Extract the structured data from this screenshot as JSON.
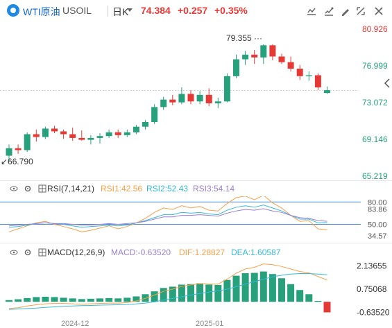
{
  "header": {
    "symbol": "WTI原油",
    "code": "USOIL",
    "period": "日K",
    "price": "74.384",
    "change": "+0.257",
    "change_pct": "+0.35%",
    "buttons": [
      "chart-style-icon",
      "indicator-icon",
      "draw-icon",
      "settings-icon",
      "fullscreen-icon",
      "close-icon"
    ]
  },
  "price_axis": [
    "80.926",
    "76.999",
    "73.072",
    "69.146",
    "65.219"
  ],
  "high_label": "79.355",
  "low_label": "66.790",
  "rsi": {
    "title": "RSI(7,14,21)",
    "rsi1": "RSI1:42.56",
    "rsi2": "RSI2:52.43",
    "rsi3": "RSI3:54.14",
    "axis": [
      "80.00",
      "83.86",
      "50.00",
      "34.57"
    ]
  },
  "macd": {
    "title": "MACD(12,26,9)",
    "macd": "MACD:-0.63520",
    "dif": "DIF:1.28827",
    "dea": "DEA:1.60587",
    "axis": [
      "2.13655",
      "0.75068",
      "-0.63520"
    ]
  },
  "dates": [
    "2024-12",
    "2025-01"
  ],
  "colors": {
    "up": "#e53935",
    "down": "#26a17b",
    "rsi1": "#f5a04a",
    "rsi2": "#36b8d8",
    "rsi3": "#9a7fd1",
    "dif": "#f5a04a",
    "dea": "#36b8d8",
    "accent": "#1565c0"
  },
  "chart_data": {
    "type": "candlestick",
    "candles": [
      {
        "o": 67.4,
        "h": 68.6,
        "l": 66.8,
        "c": 68.2
      },
      {
        "o": 68.2,
        "h": 68.6,
        "l": 67.6,
        "c": 68.0
      },
      {
        "o": 68.0,
        "h": 69.9,
        "l": 67.8,
        "c": 69.7
      },
      {
        "o": 69.7,
        "h": 70.2,
        "l": 68.9,
        "c": 69.4
      },
      {
        "o": 69.4,
        "h": 70.5,
        "l": 69.2,
        "c": 70.3
      },
      {
        "o": 70.3,
        "h": 70.6,
        "l": 69.8,
        "c": 70.0
      },
      {
        "o": 70.0,
        "h": 70.2,
        "l": 69.2,
        "c": 69.7
      },
      {
        "o": 69.7,
        "h": 70.4,
        "l": 69.0,
        "c": 69.3
      },
      {
        "o": 69.3,
        "h": 70.1,
        "l": 69.0,
        "c": 69.1
      },
      {
        "o": 69.1,
        "h": 69.6,
        "l": 68.6,
        "c": 69.3
      },
      {
        "o": 69.3,
        "h": 69.8,
        "l": 68.7,
        "c": 69.5
      },
      {
        "o": 69.5,
        "h": 70.2,
        "l": 69.3,
        "c": 69.9
      },
      {
        "o": 69.9,
        "h": 70.2,
        "l": 69.3,
        "c": 69.6
      },
      {
        "o": 69.6,
        "h": 70.2,
        "l": 69.4,
        "c": 69.9
      },
      {
        "o": 69.9,
        "h": 70.7,
        "l": 69.7,
        "c": 70.5
      },
      {
        "o": 70.5,
        "h": 71.2,
        "l": 70.2,
        "c": 71.0
      },
      {
        "o": 71.0,
        "h": 72.9,
        "l": 70.8,
        "c": 72.6
      },
      {
        "o": 72.6,
        "h": 73.7,
        "l": 72.3,
        "c": 73.4
      },
      {
        "o": 73.4,
        "h": 73.9,
        "l": 72.8,
        "c": 73.1
      },
      {
        "o": 73.1,
        "h": 74.7,
        "l": 72.9,
        "c": 74.0
      },
      {
        "o": 74.0,
        "h": 74.4,
        "l": 72.9,
        "c": 73.2
      },
      {
        "o": 73.2,
        "h": 74.3,
        "l": 72.9,
        "c": 73.9
      },
      {
        "o": 73.9,
        "h": 74.6,
        "l": 72.7,
        "c": 73.0
      },
      {
        "o": 73.0,
        "h": 73.6,
        "l": 72.5,
        "c": 73.2
      },
      {
        "o": 73.2,
        "h": 76.2,
        "l": 73.1,
        "c": 75.9
      },
      {
        "o": 75.9,
        "h": 78.2,
        "l": 75.7,
        "c": 77.7
      },
      {
        "o": 77.7,
        "h": 78.6,
        "l": 77.1,
        "c": 78.2
      },
      {
        "o": 78.2,
        "h": 78.7,
        "l": 77.2,
        "c": 77.9
      },
      {
        "o": 77.9,
        "h": 79.3,
        "l": 77.2,
        "c": 79.2
      },
      {
        "o": 79.2,
        "h": 79.3,
        "l": 77.6,
        "c": 78.0
      },
      {
        "o": 78.0,
        "h": 78.3,
        "l": 77.2,
        "c": 77.4
      },
      {
        "o": 77.4,
        "h": 78.0,
        "l": 76.4,
        "c": 76.7
      },
      {
        "o": 76.7,
        "h": 77.1,
        "l": 75.5,
        "c": 75.9
      },
      {
        "o": 75.9,
        "h": 76.4,
        "l": 75.4,
        "c": 76.0
      },
      {
        "o": 76.0,
        "h": 76.2,
        "l": 74.4,
        "c": 74.7
      },
      {
        "o": 74.1,
        "h": 74.8,
        "l": 74.0,
        "c": 74.4
      }
    ],
    "rsi_series": {
      "rsi1": [
        40,
        44,
        48,
        52,
        54,
        50,
        47,
        44,
        40,
        42,
        45,
        48,
        44,
        47,
        52,
        58,
        66,
        72,
        70,
        75,
        72,
        74,
        69,
        68,
        78,
        86,
        88,
        83,
        89,
        79,
        72,
        62,
        54,
        55,
        44,
        42.56
      ],
      "rsi2": [
        46,
        47,
        49,
        51,
        52,
        51,
        50,
        48,
        46,
        47,
        48,
        49,
        48,
        49,
        52,
        55,
        59,
        63,
        63,
        66,
        65,
        66,
        64,
        63,
        69,
        73,
        75,
        73,
        76,
        72,
        68,
        62,
        57,
        57,
        52,
        52.43
      ],
      "rsi3": [
        48,
        49,
        50,
        51,
        52,
        51,
        51,
        50,
        49,
        49,
        50,
        51,
        50,
        51,
        52,
        54,
        57,
        60,
        60,
        62,
        62,
        63,
        62,
        61,
        65,
        68,
        70,
        69,
        71,
        68,
        66,
        62,
        59,
        58,
        55,
        54.14
      ]
    },
    "macd_series": {
      "macd": [
        0.1,
        0.15,
        0.22,
        0.28,
        0.3,
        0.28,
        0.24,
        0.2,
        0.16,
        0.18,
        0.2,
        0.22,
        0.2,
        0.24,
        0.32,
        0.45,
        0.62,
        0.82,
        0.9,
        1.02,
        1.05,
        1.1,
        1.02,
        1.0,
        1.3,
        1.55,
        1.7,
        1.72,
        1.8,
        1.65,
        1.4,
        1.05,
        0.7,
        0.45,
        0.05,
        -0.63
      ],
      "dif": [
        -0.4,
        -0.35,
        -0.25,
        -0.18,
        -0.12,
        -0.1,
        -0.1,
        -0.12,
        -0.14,
        -0.12,
        -0.1,
        -0.08,
        -0.08,
        -0.05,
        0.05,
        0.2,
        0.4,
        0.62,
        0.75,
        0.92,
        1.0,
        1.08,
        1.05,
        1.05,
        1.35,
        1.7,
        1.95,
        2.05,
        2.25,
        2.2,
        2.1,
        1.95,
        1.8,
        1.72,
        1.5,
        1.29
      ],
      "dea": [
        -0.45,
        -0.43,
        -0.4,
        -0.37,
        -0.33,
        -0.3,
        -0.27,
        -0.25,
        -0.23,
        -0.22,
        -0.2,
        -0.19,
        -0.18,
        -0.16,
        -0.13,
        -0.08,
        0.0,
        0.1,
        0.2,
        0.3,
        0.4,
        0.5,
        0.58,
        0.65,
        0.75,
        0.9,
        1.05,
        1.2,
        1.35,
        1.48,
        1.58,
        1.65,
        1.68,
        1.68,
        1.65,
        1.61
      ]
    }
  }
}
